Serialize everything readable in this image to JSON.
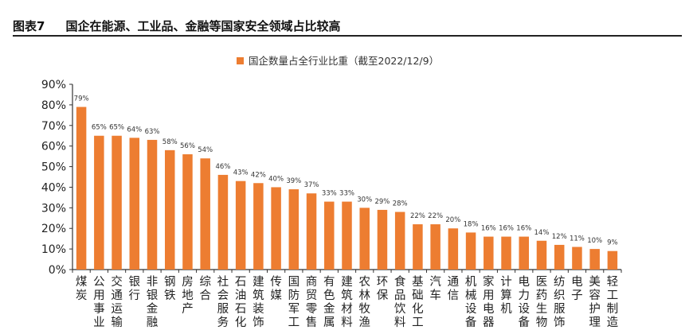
{
  "header": {
    "figure_no": "图表7",
    "title": "国企在能源、工业品、金融等国家安全领域占比较高"
  },
  "chart_data": {
    "type": "bar",
    "title": "国企在能源、工业品、金融等国家安全领域占比较高",
    "legend": "国企数量占全行业比重（截至2022/12/9）",
    "legend_position": "top-center",
    "bar_color": "#ED7D31",
    "categories": [
      "煤炭",
      "公用事业",
      "交通运输",
      "银行",
      "非银金融",
      "钢铁",
      "房地产",
      "综合",
      "社会服务",
      "石油石化",
      "建筑装饰",
      "传媒",
      "国防军工",
      "商贸零售",
      "有色金属",
      "建筑材料",
      "农林牧渔",
      "环保",
      "食品饮料",
      "基础化工",
      "汽车",
      "通信",
      "机械设备",
      "家用电器",
      "计算机",
      "电力设备",
      "医药生物",
      "纺织服饰",
      "电子",
      "美容护理",
      "轻工制造"
    ],
    "values": [
      79,
      65,
      65,
      64,
      63,
      58,
      56,
      54,
      46,
      43,
      42,
      40,
      39,
      37,
      33,
      33,
      30,
      29,
      28,
      22,
      22,
      20,
      18,
      16,
      16,
      16,
      14,
      12,
      11,
      10,
      9
    ],
    "data_labels": [
      "79%",
      "65%",
      "65%",
      "64%",
      "63%",
      "58%",
      "56%",
      "54%",
      "46%",
      "43%",
      "42%",
      "40%",
      "39%",
      "37%",
      "33%",
      "33%",
      "30%",
      "29%",
      "28%",
      "22%",
      "22%",
      "20%",
      "18%",
      "16%",
      "16%",
      "16%",
      "14%",
      "12%",
      "11%",
      "10%",
      "9%"
    ],
    "yticks": [
      "0%",
      "10%",
      "20%",
      "30%",
      "40%",
      "50%",
      "60%",
      "70%",
      "80%",
      "90%"
    ],
    "ylim": [
      0,
      90
    ],
    "xlabel": "",
    "ylabel": "",
    "grid": false
  }
}
